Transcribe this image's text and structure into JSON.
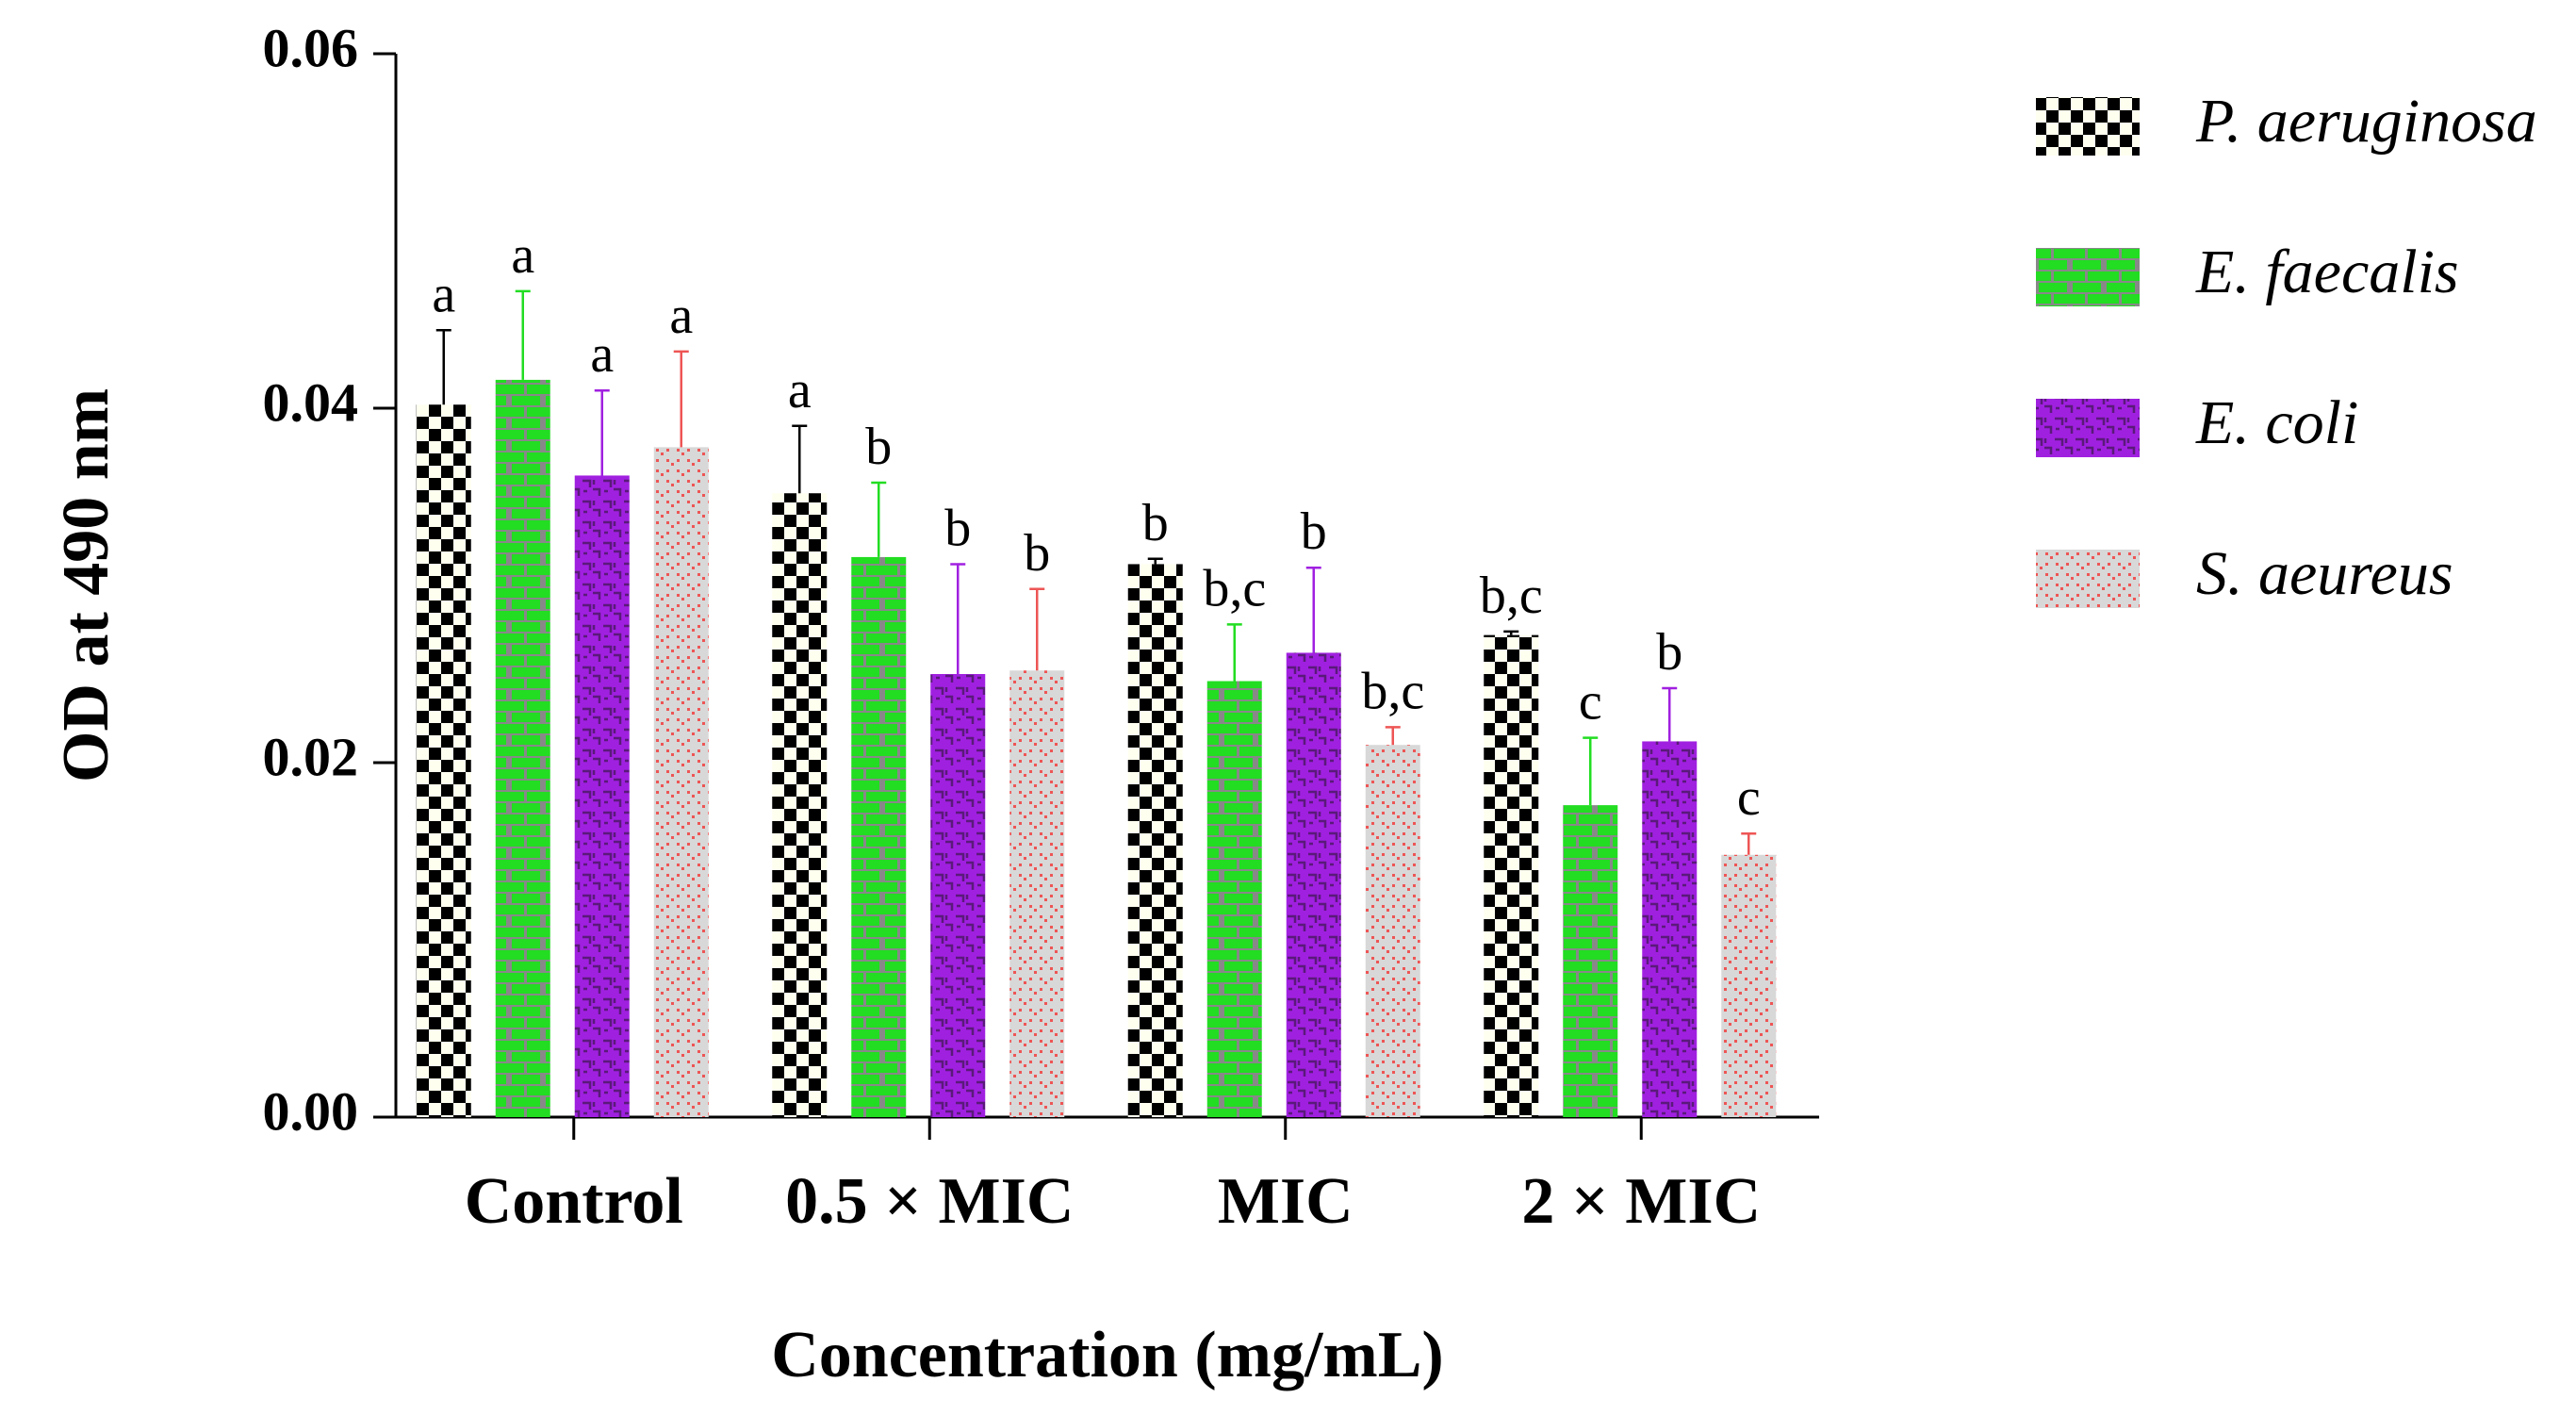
{
  "chart_data": {
    "type": "bar",
    "title": "",
    "xlabel": "Concentration (mg/mL)",
    "ylabel": "OD at 490 nm",
    "ylim": [
      0,
      0.06
    ],
    "yticks": [
      "0.00",
      "0.02",
      "0.04",
      "0.06"
    ],
    "ytick_values": [
      0,
      0.02,
      0.04,
      0.06
    ],
    "categories": [
      "Control",
      "0.5 × MIC",
      "MIC",
      "2 × MIC"
    ],
    "legend_position": "right",
    "series": [
      {
        "name": "P. aeruginosa",
        "color": "#000000",
        "color_alt": "#fffff0",
        "values": [
          0.0402,
          0.0352,
          0.0312,
          0.0272
        ],
        "errors": [
          0.0042,
          0.0038,
          0.0003,
          0.0002
        ],
        "letters": [
          "a",
          "a",
          "b",
          "b,c"
        ]
      },
      {
        "name": "E. faecalis",
        "color": "#22dd22",
        "color_alt": "#888888",
        "values": [
          0.0416,
          0.0316,
          0.0246,
          0.0176
        ],
        "errors": [
          0.005,
          0.0042,
          0.0032,
          0.0038
        ],
        "letters": [
          "a",
          "b",
          "b,c",
          "c"
        ]
      },
      {
        "name": "E. coli",
        "color": "#a020e0",
        "color_alt": "#5a1a7a",
        "values": [
          0.0362,
          0.025,
          0.0262,
          0.0212
        ],
        "errors": [
          0.0048,
          0.0062,
          0.0048,
          0.003
        ],
        "letters": [
          "a",
          "b",
          "b",
          "b"
        ]
      },
      {
        "name": "S. aeureus",
        "color": "#d0d0d0",
        "color_alt": "#ee5555",
        "values": [
          0.0378,
          0.0252,
          0.021,
          0.0148
        ],
        "errors": [
          0.0054,
          0.0046,
          0.001,
          0.0012
        ],
        "letters": [
          "a",
          "b",
          "b,c",
          "c"
        ]
      }
    ]
  }
}
